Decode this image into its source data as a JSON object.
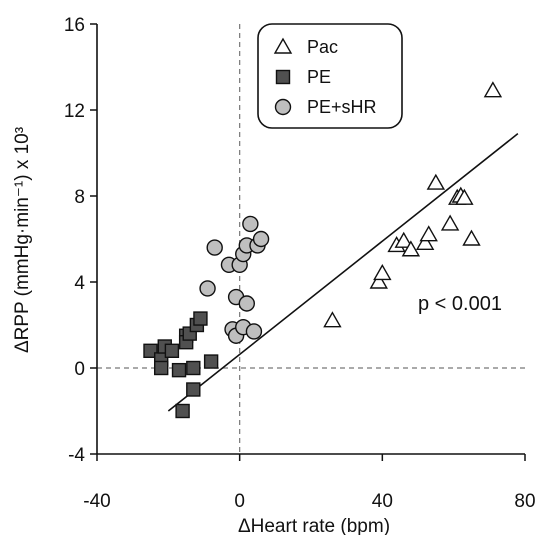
{
  "chart_data": {
    "type": "scatter",
    "xlabel": "ΔHeart rate (bpm)",
    "ylabel": "ΔRPP (mmHg·min⁻¹) x 10³",
    "xlim": [
      -40,
      80
    ],
    "ylim": [
      -4,
      16
    ],
    "xticks": [
      -40,
      0,
      40,
      80
    ],
    "yticks": [
      -4,
      0,
      4,
      8,
      12,
      16
    ],
    "x_tick_labels": [
      "-40",
      "0",
      "40",
      "80"
    ],
    "y_tick_labels": [
      "-4",
      "0",
      "4",
      "8",
      "12",
      "16"
    ],
    "reference_lines": {
      "x": 0,
      "y": 0,
      "style": "dashed"
    },
    "grid": false,
    "legend_position": "top-center",
    "annotation": "p < 0.001",
    "regression_line": {
      "x": [
        -20,
        78
      ],
      "y": [
        -2.0,
        10.9
      ]
    },
    "series": [
      {
        "name": "Pac",
        "marker": "open-triangle",
        "color": "#ffffff",
        "points": [
          [
            26,
            2.2
          ],
          [
            39,
            4.0
          ],
          [
            40,
            4.4
          ],
          [
            44,
            5.7
          ],
          [
            46,
            5.9
          ],
          [
            48,
            5.5
          ],
          [
            52,
            5.8
          ],
          [
            53,
            6.2
          ],
          [
            55,
            8.6
          ],
          [
            59,
            6.7
          ],
          [
            61,
            7.9
          ],
          [
            62,
            8.0
          ],
          [
            63,
            7.9
          ],
          [
            65,
            6.0
          ],
          [
            71,
            12.9
          ]
        ]
      },
      {
        "name": "PE",
        "marker": "filled-square",
        "color": "#505050",
        "points": [
          [
            -25,
            0.8
          ],
          [
            -22,
            0.4
          ],
          [
            -22,
            0.0
          ],
          [
            -21,
            1.0
          ],
          [
            -19,
            0.8
          ],
          [
            -17,
            -0.1
          ],
          [
            -16,
            -2.0
          ],
          [
            -15,
            1.5
          ],
          [
            -15,
            1.2
          ],
          [
            -14,
            1.6
          ],
          [
            -13,
            -1.0
          ],
          [
            -13,
            0.0
          ],
          [
            -12,
            2.0
          ],
          [
            -11,
            2.3
          ],
          [
            -8,
            0.3
          ]
        ]
      },
      {
        "name": "PE+sHR",
        "marker": "filled-circle",
        "color": "#bfbfbf",
        "points": [
          [
            -9,
            3.7
          ],
          [
            -7,
            5.6
          ],
          [
            -3,
            4.8
          ],
          [
            -2,
            1.8
          ],
          [
            -1,
            1.5
          ],
          [
            -1,
            3.3
          ],
          [
            0,
            4.8
          ],
          [
            1,
            5.3
          ],
          [
            1,
            1.9
          ],
          [
            2,
            3.0
          ],
          [
            2,
            5.7
          ],
          [
            3,
            6.7
          ],
          [
            4,
            1.7
          ],
          [
            5,
            5.7
          ],
          [
            6,
            6.0
          ]
        ]
      }
    ]
  }
}
